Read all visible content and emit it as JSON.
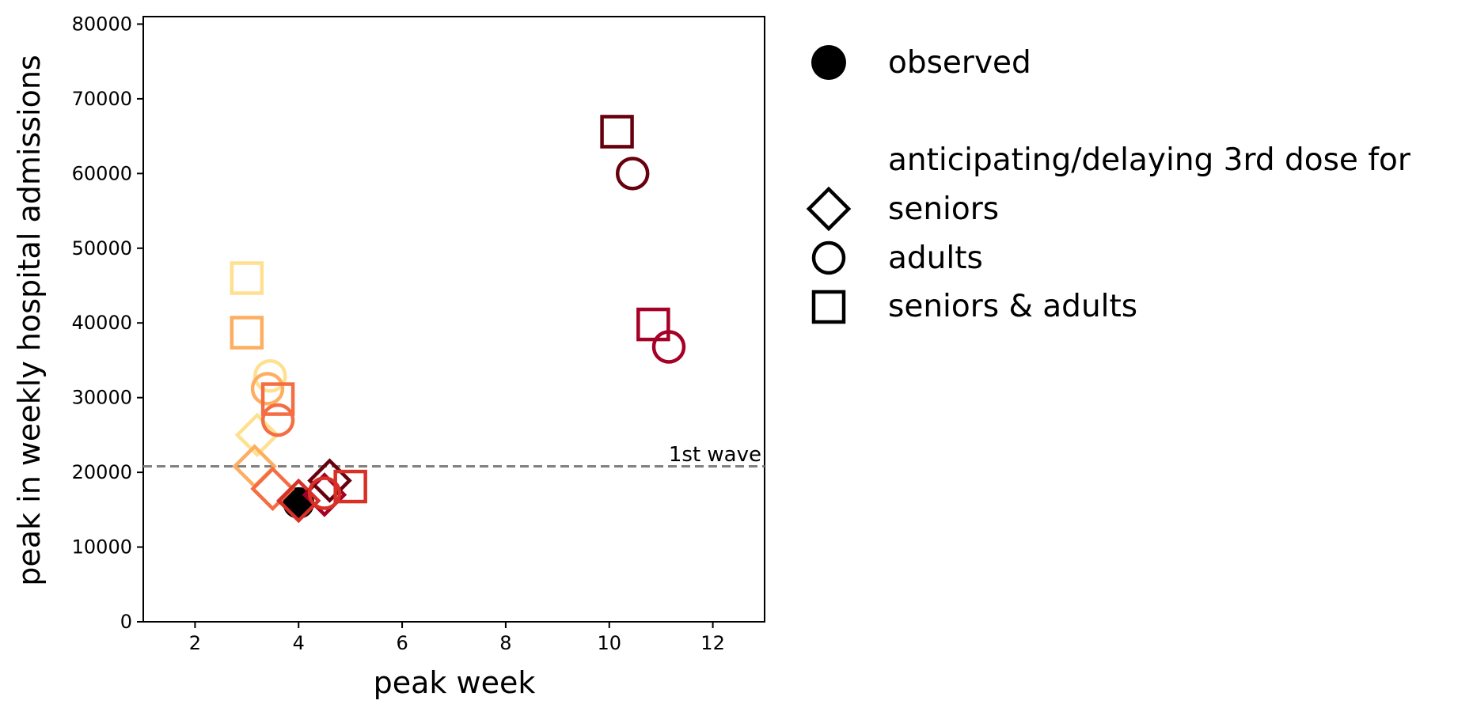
{
  "chart_data": {
    "type": "scatter",
    "title": "",
    "xlabel": "peak week",
    "ylabel": "peak in weekly hospital admissions",
    "xlim": [
      1,
      13
    ],
    "ylim": [
      0,
      81000
    ],
    "xticks": [
      2,
      4,
      6,
      8,
      10,
      12
    ],
    "yticks": [
      0,
      10000,
      20000,
      30000,
      40000,
      50000,
      60000,
      70000,
      80000
    ],
    "grid": false,
    "reference_line": {
      "y": 20800,
      "label": "1st wave",
      "color": "#808080",
      "style": "dashed"
    },
    "observed": {
      "name": "observed",
      "x": 4.0,
      "y": 15900,
      "color": "#000000"
    },
    "series": [
      {
        "name": "seniors",
        "marker": "diamond",
        "points": [
          {
            "x": 3.2,
            "y": 25000,
            "color": "#fee090"
          },
          {
            "x": 3.15,
            "y": 20800,
            "color": "#fdae61"
          },
          {
            "x": 3.5,
            "y": 17800,
            "color": "#f46d43"
          },
          {
            "x": 4.0,
            "y": 16200,
            "color": "#d73027"
          },
          {
            "x": 4.5,
            "y": 17000,
            "color": "#a50026"
          },
          {
            "x": 4.6,
            "y": 18900,
            "color": "#67000d"
          }
        ]
      },
      {
        "name": "adults",
        "marker": "circle",
        "points": [
          {
            "x": 3.45,
            "y": 32900,
            "color": "#fee090"
          },
          {
            "x": 3.4,
            "y": 31200,
            "color": "#fdae61"
          },
          {
            "x": 3.6,
            "y": 27000,
            "color": "#f46d43"
          },
          {
            "x": 4.5,
            "y": 17200,
            "color": "#d73027"
          },
          {
            "x": 11.15,
            "y": 36800,
            "color": "#a50026"
          },
          {
            "x": 10.45,
            "y": 60000,
            "color": "#67000d"
          }
        ]
      },
      {
        "name": "seniors & adults",
        "marker": "square",
        "points": [
          {
            "x": 3.0,
            "y": 46000,
            "color": "#fee090"
          },
          {
            "x": 3.0,
            "y": 38700,
            "color": "#fdae61"
          },
          {
            "x": 3.6,
            "y": 29800,
            "color": "#f46d43"
          },
          {
            "x": 5.0,
            "y": 18100,
            "color": "#d73027"
          },
          {
            "x": 10.85,
            "y": 39800,
            "color": "#a50026"
          },
          {
            "x": 10.15,
            "y": 65600,
            "color": "#67000d"
          }
        ]
      }
    ],
    "legend": {
      "placement": "outside-right",
      "entries": [
        {
          "label": "observed",
          "marker": "filled-circle"
        },
        {
          "label": "seniors",
          "marker": "diamond"
        },
        {
          "label": "adults",
          "marker": "circle"
        },
        {
          "label": "seniors & adults",
          "marker": "square"
        }
      ],
      "group_title": "anticipating/delaying 3rd dose for"
    }
  }
}
